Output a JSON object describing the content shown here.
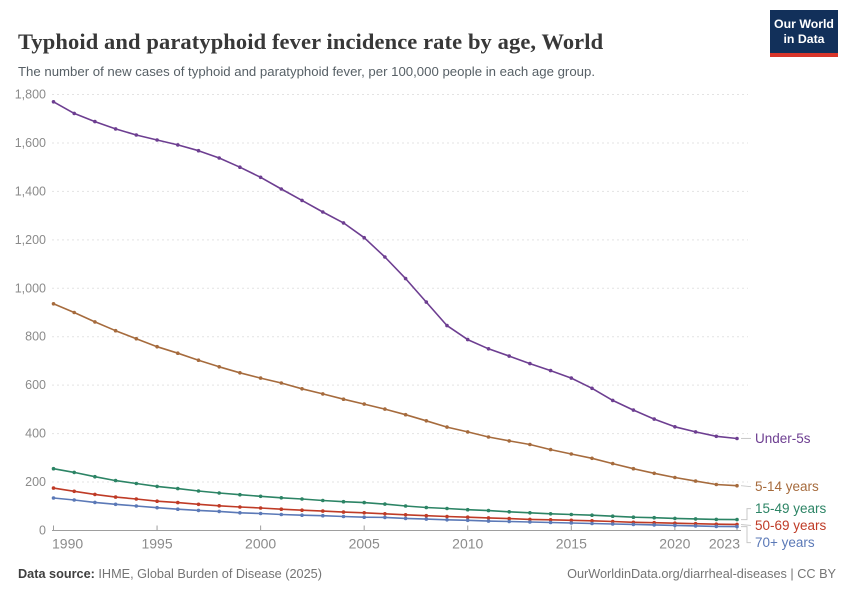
{
  "header": {
    "title": "Typhoid and paratyphoid fever incidence rate by age, World",
    "subtitle": "The number of new cases of typhoid and paratyphoid fever, per 100,000 people in each age group."
  },
  "logo": {
    "line1": "Our World",
    "line2": "in Data",
    "bg_color": "#12305a",
    "accent_color": "#d8352a"
  },
  "footer": {
    "source_label": "Data source:",
    "source_value": " IHME, Global Burden of Disease (2025)",
    "right_text": "OurWorldinData.org/diarrheal-diseases | CC BY"
  },
  "chart_data": {
    "type": "line",
    "title": "Typhoid and paratyphoid fever incidence rate by age, World",
    "xlabel": "",
    "ylabel": "",
    "ylim": [
      0,
      1800
    ],
    "ytick_step": 200,
    "grid": "horizontal-dashed",
    "legend_position": "right-of-line-ends",
    "xticks": [
      1990,
      1995,
      2000,
      2005,
      2010,
      2015,
      2020,
      2023
    ],
    "x": [
      1990,
      1991,
      1992,
      1993,
      1994,
      1995,
      1996,
      1997,
      1998,
      1999,
      2000,
      2001,
      2002,
      2003,
      2004,
      2005,
      2006,
      2007,
      2008,
      2009,
      2010,
      2011,
      2012,
      2013,
      2014,
      2015,
      2016,
      2017,
      2018,
      2019,
      2020,
      2021,
      2022,
      2023
    ],
    "series": [
      {
        "name": "Under-5s",
        "color": "#6d3e91",
        "values": [
          1770,
          1722,
          1688,
          1658,
          1633,
          1612,
          1592,
          1568,
          1538,
          1500,
          1458,
          1410,
          1363,
          1315,
          1270,
          1209,
          1129,
          1040,
          943,
          846,
          788,
          750,
          720,
          689,
          660,
          629,
          587,
          537,
          497,
          460,
          428,
          407,
          389,
          380
        ]
      },
      {
        "name": "5-14 years",
        "color": "#a66b3d",
        "values": [
          936,
          900,
          861,
          825,
          792,
          759,
          732,
          703,
          676,
          651,
          629,
          609,
          585,
          564,
          542,
          522,
          501,
          478,
          453,
          427,
          407,
          386,
          370,
          355,
          334,
          316,
          298,
          276,
          255,
          236,
          219,
          204,
          190,
          185
        ]
      },
      {
        "name": "15-49 years",
        "color": "#2c8465",
        "values": [
          255,
          240,
          222,
          206,
          194,
          182,
          173,
          163,
          155,
          148,
          141,
          135,
          130,
          124,
          119,
          115,
          109,
          101,
          95,
          91,
          86,
          82,
          77,
          73,
          69,
          66,
          63,
          59,
          55,
          53,
          50,
          48,
          46,
          45
        ]
      },
      {
        "name": "50-69 years",
        "color": "#bf3b26",
        "values": [
          175,
          162,
          149,
          138,
          130,
          121,
          115,
          108,
          102,
          97,
          93,
          88,
          84,
          80,
          76,
          73,
          69,
          65,
          61,
          58,
          55,
          52,
          49,
          46,
          44,
          42,
          40,
          37,
          34,
          32,
          30,
          28,
          26,
          25
        ]
      },
      {
        "name": "70+ years",
        "color": "#5b79b7",
        "values": [
          134,
          126,
          116,
          108,
          101,
          94,
          88,
          83,
          79,
          73,
          70,
          66,
          63,
          61,
          58,
          55,
          54,
          50,
          47,
          44,
          42,
          39,
          37,
          35,
          33,
          31,
          29,
          27,
          25,
          23,
          21,
          19,
          17,
          16
        ]
      }
    ]
  }
}
